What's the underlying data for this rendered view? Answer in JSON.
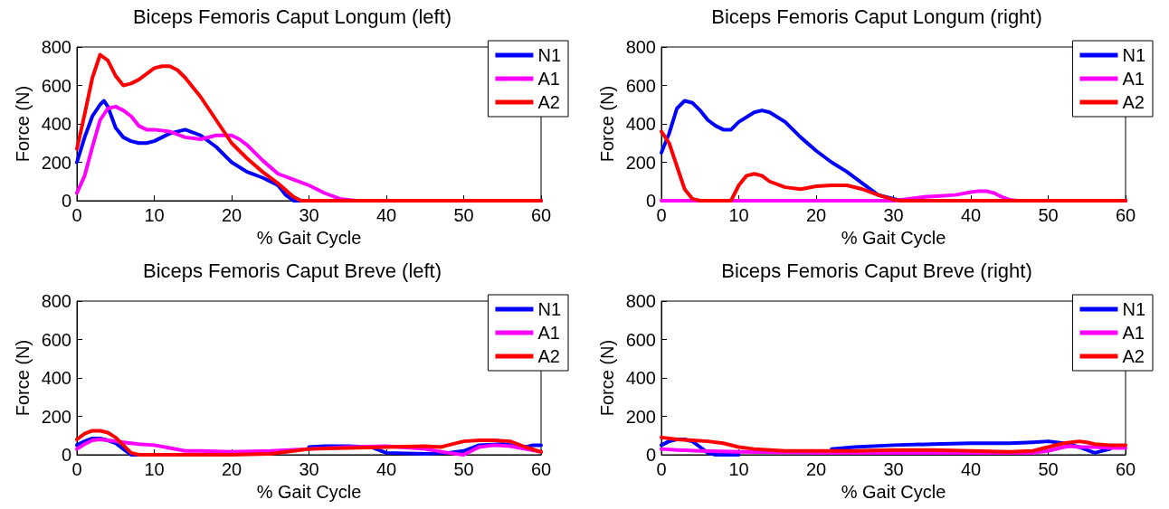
{
  "chart_data": [
    {
      "type": "line",
      "title": "Biceps Femoris Caput Longum (left)",
      "xlabel": "% Gait Cycle",
      "ylabel": "Force (N)",
      "xlim": [
        0,
        60
      ],
      "xticks": [
        0,
        10,
        20,
        30,
        40,
        50,
        60
      ],
      "ylim": [
        0,
        800
      ],
      "yticks": [
        0,
        200,
        400,
        600,
        800
      ],
      "grid": false,
      "legend": "top right",
      "marker": "none",
      "line_style": "solid",
      "series": [
        {
          "name": "N1",
          "color": "#0000ff",
          "x": [
            0,
            1,
            2,
            3,
            3.5,
            4,
            5,
            6,
            7,
            8,
            9,
            10,
            12,
            14,
            16,
            18,
            20,
            22,
            24,
            26,
            27,
            28,
            60
          ],
          "values": [
            200,
            330,
            440,
            500,
            520,
            490,
            380,
            330,
            310,
            300,
            300,
            310,
            350,
            370,
            340,
            280,
            200,
            150,
            120,
            80,
            30,
            0,
            0
          ]
        },
        {
          "name": "A1",
          "color": "#ff00ff",
          "x": [
            0,
            1,
            2,
            3,
            4,
            5,
            6,
            7,
            8,
            9,
            10,
            12,
            14,
            16,
            18,
            20,
            21,
            22,
            24,
            26,
            28,
            30,
            32,
            34,
            36,
            60
          ],
          "values": [
            40,
            130,
            280,
            420,
            480,
            490,
            470,
            440,
            390,
            370,
            370,
            360,
            330,
            320,
            340,
            340,
            320,
            290,
            210,
            140,
            110,
            80,
            40,
            10,
            0,
            0
          ]
        },
        {
          "name": "A2",
          "color": "#ff0000",
          "x": [
            0,
            1,
            2,
            3,
            4,
            5,
            6,
            7,
            8,
            10,
            11,
            12,
            13,
            14,
            16,
            18,
            20,
            22,
            24,
            26,
            28,
            29,
            60
          ],
          "values": [
            270,
            450,
            640,
            760,
            730,
            650,
            600,
            610,
            630,
            690,
            700,
            700,
            680,
            640,
            540,
            420,
            300,
            220,
            150,
            90,
            20,
            0,
            0
          ]
        }
      ]
    },
    {
      "type": "line",
      "title": "Biceps Femoris Caput Longum (right)",
      "xlabel": "% Gait Cycle",
      "ylabel": "Force (N)",
      "xlim": [
        0,
        60
      ],
      "xticks": [
        0,
        10,
        20,
        30,
        40,
        50,
        60
      ],
      "ylim": [
        0,
        800
      ],
      "yticks": [
        0,
        200,
        400,
        600,
        800
      ],
      "grid": false,
      "legend": "top right",
      "marker": "none",
      "line_style": "solid",
      "series": [
        {
          "name": "N1",
          "color": "#0000ff",
          "x": [
            0,
            1,
            2,
            3,
            4,
            5,
            6,
            7,
            8,
            9,
            10,
            12,
            13,
            14,
            16,
            18,
            20,
            22,
            24,
            26,
            28,
            30,
            31,
            60
          ],
          "values": [
            250,
            350,
            480,
            520,
            510,
            470,
            420,
            390,
            370,
            370,
            410,
            460,
            470,
            460,
            410,
            330,
            260,
            200,
            150,
            90,
            30,
            10,
            0,
            0
          ]
        },
        {
          "name": "A1",
          "color": "#ff00ff",
          "x": [
            0,
            30,
            32,
            34,
            36,
            38,
            40,
            41,
            42,
            43,
            44,
            45,
            46,
            60
          ],
          "values": [
            0,
            0,
            10,
            20,
            25,
            30,
            45,
            50,
            50,
            40,
            20,
            5,
            0,
            0
          ]
        },
        {
          "name": "A2",
          "color": "#ff0000",
          "x": [
            0,
            1,
            2,
            3,
            4,
            5,
            9,
            10,
            11,
            12,
            13,
            14,
            16,
            18,
            20,
            22,
            24,
            26,
            28,
            30,
            31,
            60
          ],
          "values": [
            360,
            300,
            180,
            60,
            10,
            0,
            0,
            80,
            130,
            140,
            130,
            100,
            70,
            60,
            75,
            80,
            80,
            60,
            30,
            5,
            0,
            0
          ]
        }
      ]
    },
    {
      "type": "line",
      "title": "Biceps Femoris Caput Breve (left)",
      "xlabel": "% Gait Cycle",
      "ylabel": "Force (N)",
      "xlim": [
        0,
        60
      ],
      "xticks": [
        0,
        10,
        20,
        30,
        40,
        50,
        60
      ],
      "ylim": [
        0,
        800
      ],
      "yticks": [
        0,
        200,
        400,
        600,
        800
      ],
      "grid": false,
      "legend": "top right",
      "marker": "none",
      "line_style": "solid",
      "series": [
        {
          "name": "N1",
          "color": "#0000ff",
          "x": [
            0,
            1,
            2,
            3,
            4,
            5,
            6,
            7,
            10,
            20,
            28,
            30,
            32,
            35,
            38,
            40,
            45,
            48,
            50,
            52,
            55,
            58,
            59,
            60
          ],
          "values": [
            50,
            70,
            85,
            85,
            75,
            60,
            30,
            0,
            0,
            null,
            null,
            40,
            45,
            45,
            40,
            10,
            5,
            10,
            20,
            50,
            55,
            40,
            50,
            50
          ]
        },
        {
          "name": "A1",
          "color": "#ff00ff",
          "x": [
            0,
            1,
            2,
            3,
            4,
            5,
            6,
            8,
            10,
            12,
            14,
            16,
            20,
            25,
            30,
            35,
            40,
            45,
            48,
            50,
            52,
            54,
            56,
            58,
            60
          ],
          "values": [
            30,
            55,
            75,
            80,
            75,
            70,
            65,
            55,
            50,
            35,
            20,
            20,
            15,
            20,
            30,
            40,
            45,
            30,
            10,
            0,
            40,
            50,
            45,
            30,
            15
          ]
        },
        {
          "name": "A2",
          "color": "#ff0000",
          "x": [
            0,
            1,
            2,
            3,
            4,
            5,
            6,
            7,
            8,
            20,
            25,
            28,
            30,
            35,
            40,
            45,
            47,
            48,
            50,
            52,
            54,
            56,
            58,
            60
          ],
          "values": [
            80,
            110,
            125,
            125,
            115,
            90,
            50,
            10,
            0,
            0,
            5,
            20,
            30,
            35,
            40,
            45,
            40,
            50,
            70,
            75,
            75,
            70,
            40,
            15
          ]
        }
      ]
    },
    {
      "type": "line",
      "title": "Biceps Femoris Caput Breve (right)",
      "xlabel": "% Gait Cycle",
      "ylabel": "Force (N)",
      "xlim": [
        0,
        60
      ],
      "xticks": [
        0,
        10,
        20,
        30,
        40,
        50,
        60
      ],
      "ylim": [
        0,
        800
      ],
      "yticks": [
        0,
        200,
        400,
        600,
        800
      ],
      "grid": false,
      "legend": "top right",
      "marker": "none",
      "line_style": "solid",
      "series": [
        {
          "name": "N1",
          "color": "#0000ff",
          "x": [
            0,
            1,
            2,
            3,
            4,
            5,
            6,
            7,
            10,
            20,
            22,
            25,
            30,
            35,
            40,
            45,
            48,
            50,
            52,
            54,
            56,
            58
          ],
          "values": [
            50,
            70,
            80,
            80,
            70,
            40,
            10,
            0,
            0,
            null,
            30,
            40,
            50,
            55,
            60,
            60,
            65,
            70,
            60,
            40,
            10,
            30
          ]
        },
        {
          "name": "A1",
          "color": "#ff00ff",
          "x": [
            0,
            2,
            5,
            10,
            20,
            30,
            40,
            45,
            48,
            50,
            52,
            53,
            54,
            56,
            58,
            60
          ],
          "values": [
            30,
            25,
            20,
            15,
            10,
            10,
            10,
            10,
            10,
            20,
            40,
            45,
            40,
            40,
            35,
            35
          ]
        },
        {
          "name": "A2",
          "color": "#ff0000",
          "x": [
            0,
            2,
            4,
            6,
            8,
            10,
            12,
            14,
            16,
            20,
            25,
            30,
            35,
            40,
            45,
            48,
            50,
            52,
            54,
            55,
            56,
            58,
            60
          ],
          "values": [
            90,
            80,
            75,
            70,
            60,
            40,
            30,
            25,
            20,
            20,
            20,
            25,
            25,
            20,
            15,
            20,
            40,
            60,
            70,
            65,
            55,
            50,
            50
          ]
        }
      ]
    }
  ]
}
